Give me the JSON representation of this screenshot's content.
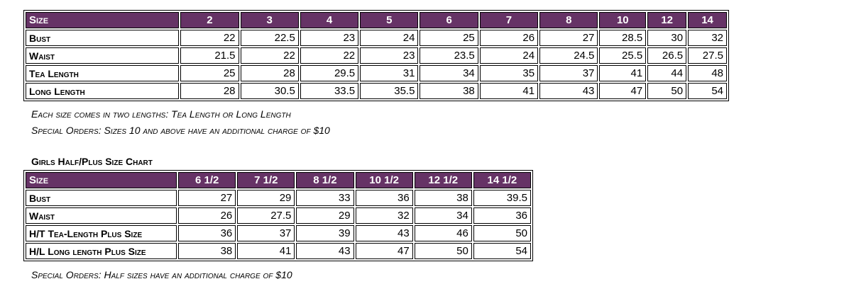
{
  "table1": {
    "headers": [
      "Size",
      "2",
      "3",
      "4",
      "5",
      "6",
      "7",
      "8",
      "10",
      "12",
      "14"
    ],
    "rows": [
      {
        "label": "Bust",
        "values": [
          "22",
          "22.5",
          "23",
          "24",
          "25",
          "26",
          "27",
          "28.5",
          "30",
          "32"
        ]
      },
      {
        "label": "Waist",
        "values": [
          "21.5",
          "22",
          "22",
          "23",
          "23.5",
          "24",
          "24.5",
          "25.5",
          "26.5",
          "27.5"
        ]
      },
      {
        "label": "Tea Length",
        "values": [
          "25",
          "28",
          "29.5",
          "31",
          "34",
          "35",
          "37",
          "41",
          "44",
          "48"
        ]
      },
      {
        "label": "Long Length",
        "values": [
          "28",
          "30.5",
          "33.5",
          "35.5",
          "38",
          "41",
          "43",
          "47",
          "50",
          "54"
        ]
      }
    ],
    "notes": [
      "Each size comes in two lengths: Tea Length or Long Length",
      "Special Orders: Sizes 10 and above have an additional charge of $10"
    ]
  },
  "table2": {
    "title": "Girls Half/Plus Size Chart",
    "headers": [
      "Size",
      "6 1/2",
      "7 1/2",
      "8 1/2",
      "10 1/2",
      "12 1/2",
      "14 1/2"
    ],
    "rows": [
      {
        "label": "Bust",
        "values": [
          "27",
          "29",
          "33",
          "36",
          "38",
          "39.5"
        ]
      },
      {
        "label": "Waist",
        "values": [
          "26",
          "27.5",
          "29",
          "32",
          "34",
          "36"
        ]
      },
      {
        "label": "H/T Tea-Length Plus Size",
        "values": [
          "36",
          "37",
          "39",
          "43",
          "46",
          "50"
        ]
      },
      {
        "label": "H/L Long length Plus Size",
        "values": [
          "38",
          "41",
          "43",
          "47",
          "50",
          "54"
        ]
      }
    ],
    "notes": [
      "Special Orders: Half sizes have an additional charge of $10"
    ]
  },
  "colors": {
    "header_bg": "#663366",
    "header_text": "#ffffff"
  }
}
